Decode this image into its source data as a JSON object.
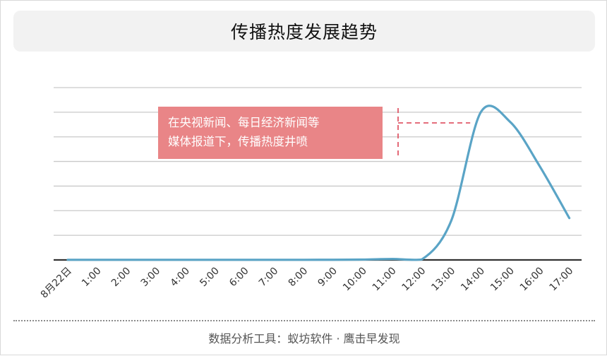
{
  "title": "传播热度发展趋势",
  "footer": "数据分析工具：蚁坊软件 · 鹰击早发现",
  "annotation": "在央视新闻、每日经济新闻等\n媒体报道下，传播热度井喷",
  "colors": {
    "line": "#5aa4c6",
    "annotation_bg": "#e98587",
    "leader": "#e05a6a",
    "title_bg": "#f2f2f2"
  },
  "chart_data": {
    "type": "line",
    "title": "传播热度发展趋势",
    "xlabel": "",
    "ylabel": "",
    "categories": [
      "8月22日",
      "1:00",
      "2:00",
      "3:00",
      "4:00",
      "5:00",
      "6:00",
      "7:00",
      "8:00",
      "9:00",
      "10:00",
      "11:00",
      "12:00",
      "13:00",
      "14:00",
      "15:00",
      "16:00",
      "17:00"
    ],
    "series": [
      {
        "values": [
          0.3,
          0.3,
          0.3,
          0.3,
          0.3,
          0.3,
          0.3,
          0.3,
          0.3,
          0.4,
          0.8,
          2,
          1,
          80,
          300,
          280,
          190,
          85
        ]
      }
    ],
    "ylim": [
      0,
      350
    ],
    "y_ticks_labeled": false,
    "grid": true,
    "legend": "none"
  }
}
